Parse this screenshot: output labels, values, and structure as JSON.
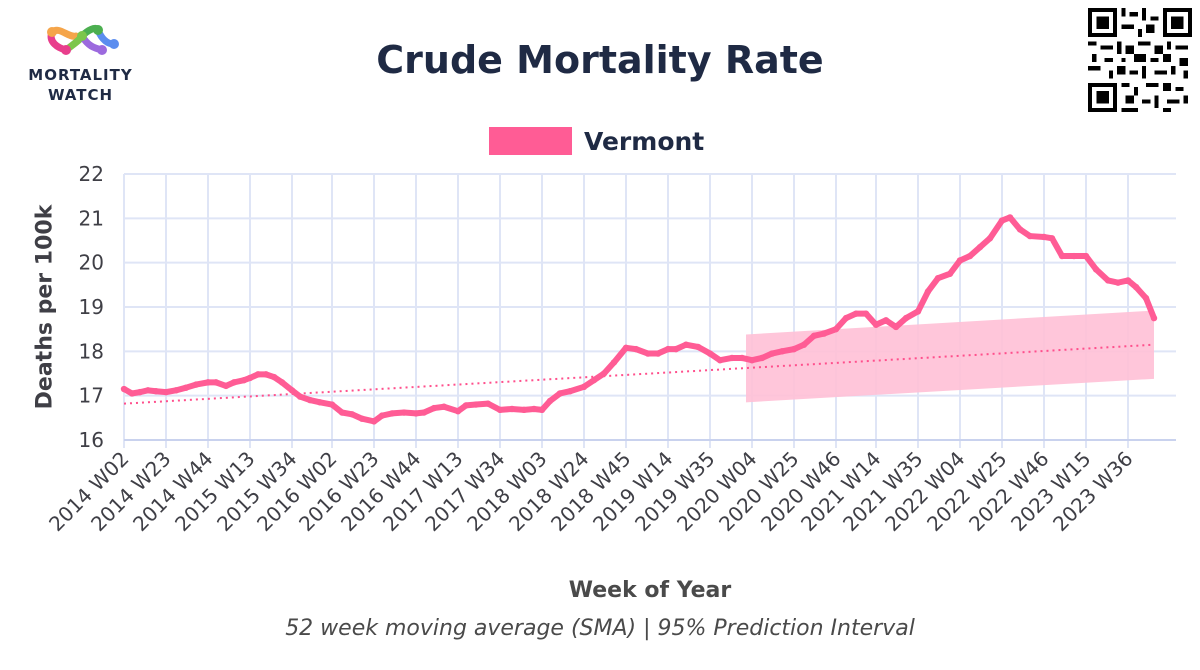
{
  "header": {
    "title": "Crude Mortality Rate",
    "logo_line1": "MORTALITY",
    "logo_line2": "WATCH"
  },
  "legend": {
    "label": "Vermont",
    "color": "#ff5c95"
  },
  "footer": {
    "subtitle": "52 week moving average (SMA) | 95% Prediction Interval"
  },
  "colors": {
    "series": "#ff5c95",
    "band": "#ffc0d6",
    "trend": "#ff4f8c",
    "grid": "#dfe5f6",
    "text": "#1f2a44"
  },
  "chart_data": {
    "type": "line",
    "title": "Crude Mortality Rate",
    "subtitle": "52 week moving average (SMA) | 95% Prediction Interval",
    "xlabel": "Week of Year",
    "ylabel": "Deaths per 100k",
    "ylim": [
      16,
      22
    ],
    "yticks": [
      16,
      17,
      18,
      19,
      20,
      21,
      22
    ],
    "grid": true,
    "legend_position": "top-center",
    "x_tick_labels": [
      "2014 W02",
      "2014 W23",
      "2014 W44",
      "2015 W13",
      "2015 W34",
      "2016 W02",
      "2016 W23",
      "2016 W44",
      "2017 W13",
      "2017 W34",
      "2018 W03",
      "2018 W24",
      "2018 W45",
      "2019 W14",
      "2019 W35",
      "2020 W04",
      "2020 W25",
      "2020 W46",
      "2021 W14",
      "2021 W35",
      "2022 W04",
      "2022 W25",
      "2022 W46",
      "2023 W15",
      "2023 W36"
    ],
    "series": [
      {
        "name": "Vermont",
        "type": "line",
        "points": [
          [
            "2014 W02",
            17.15
          ],
          [
            "2014 W06",
            17.05
          ],
          [
            "2014 W10",
            17.08
          ],
          [
            "2014 W14",
            17.12
          ],
          [
            "2014 W18",
            17.1
          ],
          [
            "2014 W23",
            17.08
          ],
          [
            "2014 W28",
            17.12
          ],
          [
            "2014 W33",
            17.18
          ],
          [
            "2014 W38",
            17.25
          ],
          [
            "2014 W44",
            17.3
          ],
          [
            "2014 W48",
            17.3
          ],
          [
            "2015 W01",
            17.22
          ],
          [
            "2015 W05",
            17.3
          ],
          [
            "2015 W10",
            17.35
          ],
          [
            "2015 W13",
            17.4
          ],
          [
            "2015 W17",
            17.48
          ],
          [
            "2015 W21",
            17.48
          ],
          [
            "2015 W25",
            17.42
          ],
          [
            "2015 W29",
            17.3
          ],
          [
            "2015 W34",
            17.12
          ],
          [
            "2015 W38",
            16.98
          ],
          [
            "2015 W43",
            16.9
          ],
          [
            "2015 W48",
            16.85
          ],
          [
            "2016 W02",
            16.8
          ],
          [
            "2016 W07",
            16.62
          ],
          [
            "2016 W12",
            16.58
          ],
          [
            "2016 W17",
            16.48
          ],
          [
            "2016 W23",
            16.42
          ],
          [
            "2016 W27",
            16.55
          ],
          [
            "2016 W32",
            16.6
          ],
          [
            "2016 W38",
            16.62
          ],
          [
            "2016 W44",
            16.6
          ],
          [
            "2016 W48",
            16.62
          ],
          [
            "2017 W01",
            16.72
          ],
          [
            "2017 W06",
            16.75
          ],
          [
            "2017 W13",
            16.65
          ],
          [
            "2017 W17",
            16.78
          ],
          [
            "2017 W22",
            16.8
          ],
          [
            "2017 W28",
            16.82
          ],
          [
            "2017 W34",
            16.68
          ],
          [
            "2017 W40",
            16.7
          ],
          [
            "2017 W46",
            16.68
          ],
          [
            "2017 W51",
            16.7
          ],
          [
            "2018 W03",
            16.68
          ],
          [
            "2018 W07",
            16.88
          ],
          [
            "2018 W12",
            17.05
          ],
          [
            "2018 W17",
            17.1
          ],
          [
            "2018 W24",
            17.2
          ],
          [
            "2018 W29",
            17.35
          ],
          [
            "2018 W34",
            17.5
          ],
          [
            "2018 W39",
            17.75
          ],
          [
            "2018 W45",
            18.08
          ],
          [
            "2018 W50",
            18.05
          ],
          [
            "2019 W04",
            17.95
          ],
          [
            "2019 W09",
            17.95
          ],
          [
            "2019 W14",
            18.05
          ],
          [
            "2019 W18",
            18.05
          ],
          [
            "2019 W23",
            18.15
          ],
          [
            "2019 W29",
            18.1
          ],
          [
            "2019 W35",
            17.95
          ],
          [
            "2019 W40",
            17.8
          ],
          [
            "2019 W46",
            17.85
          ],
          [
            "2019 W51",
            17.85
          ],
          [
            "2020 W04",
            17.8
          ],
          [
            "2020 W09",
            17.85
          ],
          [
            "2020 W14",
            17.95
          ],
          [
            "2020 W19",
            18.0
          ],
          [
            "2020 W25",
            18.05
          ],
          [
            "2020 W30",
            18.15
          ],
          [
            "2020 W35",
            18.35
          ],
          [
            "2020 W40",
            18.4
          ],
          [
            "2020 W46",
            18.5
          ],
          [
            "2020 W51",
            18.75
          ],
          [
            "2021 W04",
            18.85
          ],
          [
            "2021 W09",
            18.85
          ],
          [
            "2021 W14",
            18.6
          ],
          [
            "2021 W19",
            18.7
          ],
          [
            "2021 W24",
            18.55
          ],
          [
            "2021 W29",
            18.75
          ],
          [
            "2021 W35",
            18.9
          ],
          [
            "2021 W40",
            19.35
          ],
          [
            "2021 W45",
            19.65
          ],
          [
            "2021 W51",
            19.75
          ],
          [
            "2022 W04",
            20.05
          ],
          [
            "2022 W09",
            20.15
          ],
          [
            "2022 W14",
            20.35
          ],
          [
            "2022 W19",
            20.55
          ],
          [
            "2022 W25",
            20.95
          ],
          [
            "2022 W29",
            21.02
          ],
          [
            "2022 W34",
            20.75
          ],
          [
            "2022 W39",
            20.6
          ],
          [
            "2022 W46",
            20.58
          ],
          [
            "2022 W50",
            20.55
          ],
          [
            "2023 W03",
            20.15
          ],
          [
            "2023 W09",
            20.15
          ],
          [
            "2023 W15",
            20.15
          ],
          [
            "2023 W20",
            19.85
          ],
          [
            "2023 W26",
            19.6
          ],
          [
            "2023 W31",
            19.55
          ],
          [
            "2023 W36",
            19.6
          ],
          [
            "2023 W40",
            19.45
          ],
          [
            "2023 W45",
            19.2
          ],
          [
            "2023 W49",
            18.75
          ]
        ]
      },
      {
        "name": "Trend",
        "type": "dotted-line",
        "points": [
          [
            "2014 W02",
            16.82
          ],
          [
            "2023 W49",
            18.15
          ]
        ]
      },
      {
        "name": "95% Prediction Interval",
        "type": "band",
        "upper": [
          [
            "2020 W01",
            18.38
          ],
          [
            "2023 W49",
            18.92
          ]
        ],
        "lower": [
          [
            "2020 W01",
            16.85
          ],
          [
            "2023 W49",
            17.38
          ]
        ]
      }
    ]
  }
}
